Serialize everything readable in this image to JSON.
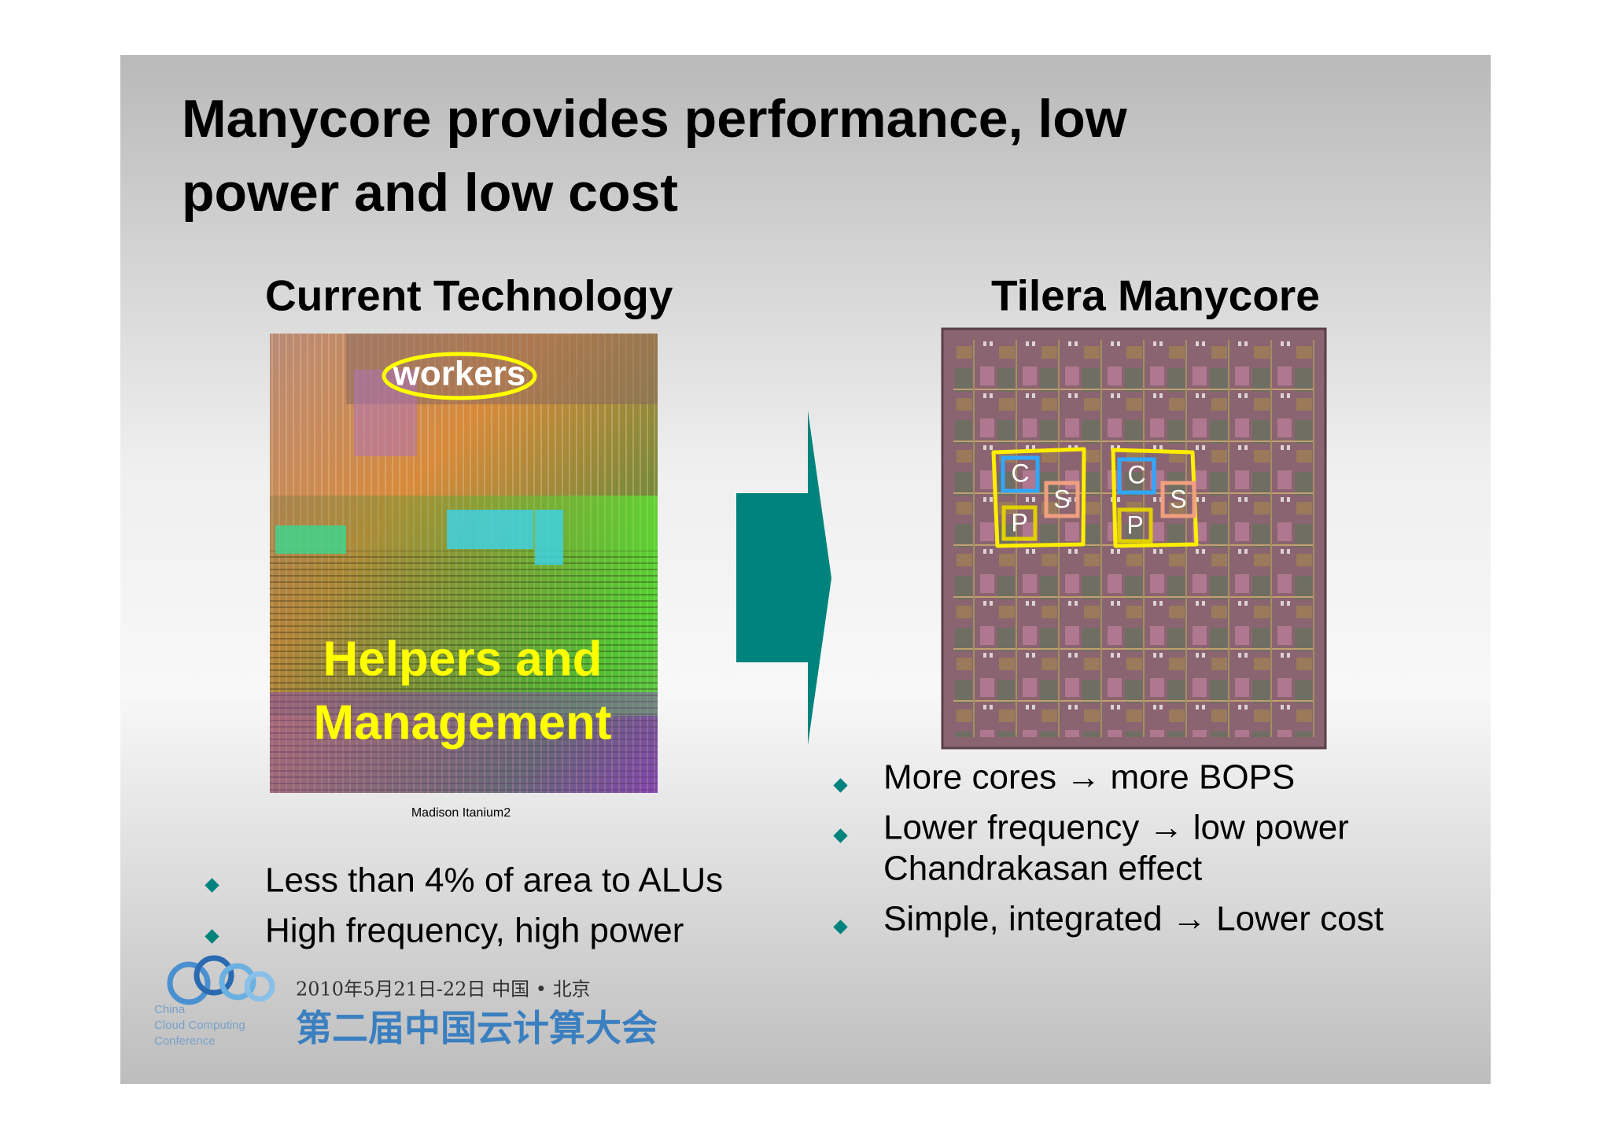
{
  "title": [
    "Manycore provides performance, low",
    "power and low cost"
  ],
  "left": {
    "heading": "Current Technology",
    "image_labels": {
      "workers": "workers",
      "helpers": [
        "Helpers and",
        "Management"
      ]
    },
    "caption": "Madison Itanium2",
    "bullets": [
      "Less than 4% of area to ALUs",
      "High frequency, high power"
    ]
  },
  "right": {
    "heading": "Tilera Manycore",
    "chip_labels": [
      "C",
      "S",
      "P",
      "C",
      "S",
      "P"
    ],
    "bullets": [
      [
        "More cores → more BOPS"
      ],
      [
        "Lower frequency → low power",
        "Chandrakasan effect"
      ],
      [
        "Simple, integrated → Lower cost"
      ]
    ]
  },
  "footer": {
    "logo_text": [
      "China",
      "Cloud Computing",
      "Conference"
    ],
    "date": "2010年5月21日-22日  中国 • 北京",
    "conference_name": "第二届中国云计算大会"
  }
}
